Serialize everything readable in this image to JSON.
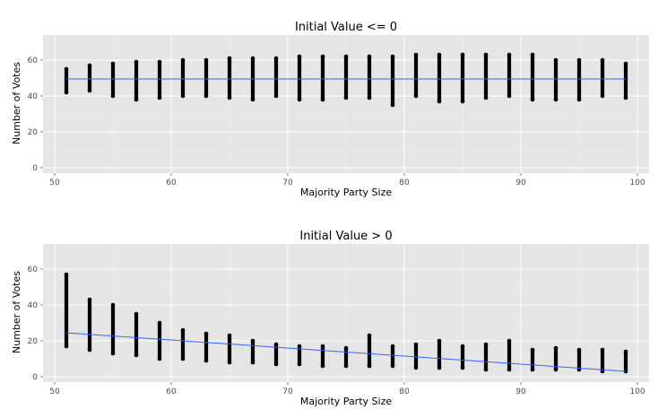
{
  "chart_data": [
    {
      "type": "scatter",
      "title": "Initial Value <= 0",
      "xlabel": "Majority Party Size",
      "ylabel": "Number of Votes",
      "xlim": [
        49,
        101
      ],
      "ylim": [
        -3,
        74
      ],
      "xticks": [
        50,
        60,
        70,
        80,
        90,
        100
      ],
      "yticks": [
        0,
        20,
        40,
        60
      ],
      "grid": true,
      "columns": [
        {
          "x": 51,
          "min": 42,
          "max": 55
        },
        {
          "x": 53,
          "min": 43,
          "max": 57
        },
        {
          "x": 55,
          "min": 40,
          "max": 58
        },
        {
          "x": 57,
          "min": 38,
          "max": 59
        },
        {
          "x": 59,
          "min": 39,
          "max": 59
        },
        {
          "x": 61,
          "min": 40,
          "max": 60
        },
        {
          "x": 63,
          "min": 40,
          "max": 60
        },
        {
          "x": 65,
          "min": 39,
          "max": 61
        },
        {
          "x": 67,
          "min": 38,
          "max": 61
        },
        {
          "x": 69,
          "min": 40,
          "max": 61
        },
        {
          "x": 71,
          "min": 38,
          "max": 62
        },
        {
          "x": 73,
          "min": 38,
          "max": 62
        },
        {
          "x": 75,
          "min": 39,
          "max": 62
        },
        {
          "x": 77,
          "min": 39,
          "max": 62
        },
        {
          "x": 79,
          "min": 35,
          "max": 62
        },
        {
          "x": 81,
          "min": 40,
          "max": 63
        },
        {
          "x": 83,
          "min": 37,
          "max": 63
        },
        {
          "x": 85,
          "min": 37,
          "max": 63
        },
        {
          "x": 87,
          "min": 39,
          "max": 63
        },
        {
          "x": 89,
          "min": 40,
          "max": 63
        },
        {
          "x": 91,
          "min": 38,
          "max": 63
        },
        {
          "x": 93,
          "min": 38,
          "max": 60
        },
        {
          "x": 95,
          "min": 38,
          "max": 60
        },
        {
          "x": 97,
          "min": 40,
          "max": 60
        },
        {
          "x": 99,
          "min": 39,
          "max": 58
        }
      ],
      "fit_line": {
        "x": [
          51,
          99
        ],
        "y": [
          49.5,
          49.5
        ],
        "color": "#3366ff"
      }
    },
    {
      "type": "scatter",
      "title": "Initial Value > 0",
      "xlabel": "Majority Party Size",
      "ylabel": "Number of Votes",
      "xlim": [
        49,
        101
      ],
      "ylim": [
        -3,
        74
      ],
      "xticks": [
        50,
        60,
        70,
        80,
        90,
        100
      ],
      "yticks": [
        0,
        20,
        40,
        60
      ],
      "grid": true,
      "columns": [
        {
          "x": 51,
          "min": 17,
          "max": 57
        },
        {
          "x": 53,
          "min": 15,
          "max": 43
        },
        {
          "x": 55,
          "min": 13,
          "max": 40
        },
        {
          "x": 57,
          "min": 12,
          "max": 35
        },
        {
          "x": 59,
          "min": 10,
          "max": 30
        },
        {
          "x": 61,
          "min": 10,
          "max": 26
        },
        {
          "x": 63,
          "min": 9,
          "max": 24
        },
        {
          "x": 65,
          "min": 8,
          "max": 23
        },
        {
          "x": 67,
          "min": 8,
          "max": 20
        },
        {
          "x": 69,
          "min": 7,
          "max": 18
        },
        {
          "x": 71,
          "min": 7,
          "max": 17
        },
        {
          "x": 73,
          "min": 6,
          "max": 17
        },
        {
          "x": 75,
          "min": 6,
          "max": 16
        },
        {
          "x": 77,
          "min": 6,
          "max": 23
        },
        {
          "x": 79,
          "min": 6,
          "max": 17
        },
        {
          "x": 81,
          "min": 5,
          "max": 18
        },
        {
          "x": 83,
          "min": 5,
          "max": 20
        },
        {
          "x": 85,
          "min": 5,
          "max": 17
        },
        {
          "x": 87,
          "min": 4,
          "max": 18
        },
        {
          "x": 89,
          "min": 4,
          "max": 20
        },
        {
          "x": 91,
          "min": 4,
          "max": 15
        },
        {
          "x": 93,
          "min": 4,
          "max": 16
        },
        {
          "x": 95,
          "min": 4,
          "max": 15
        },
        {
          "x": 97,
          "min": 3,
          "max": 15
        },
        {
          "x": 99,
          "min": 3,
          "max": 14
        }
      ],
      "fit_line": {
        "x": [
          51,
          99
        ],
        "y": [
          24.5,
          3
        ],
        "color": "#3366ff"
      }
    }
  ]
}
